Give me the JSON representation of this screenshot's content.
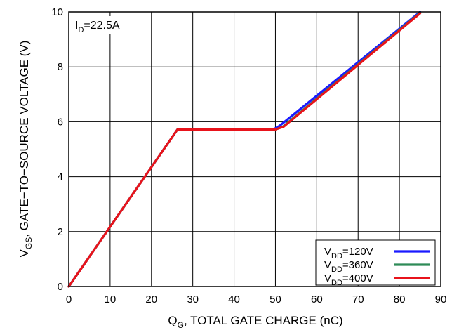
{
  "chart_data": {
    "type": "line",
    "xlabel": {
      "main": "Q",
      "sub": "G",
      "rest": ", TOTAL GATE CHARGE (nC)"
    },
    "ylabel": {
      "main": "V",
      "sub": "GS",
      "rest": ", GATE−TO−SOURCE VOLTAGE (V)"
    },
    "xlim": [
      0,
      90
    ],
    "ylim": [
      0,
      10
    ],
    "xticks": [
      "0",
      "10",
      "20",
      "30",
      "40",
      "50",
      "60",
      "70",
      "80",
      "90"
    ],
    "yticks": [
      "0",
      "2",
      "4",
      "6",
      "8",
      "10"
    ],
    "grid": true,
    "annotation": {
      "main": "I",
      "sub": "D",
      "rest": "=22.5A"
    },
    "legend_position": "bottom-right",
    "series": [
      {
        "name": {
          "main": "V",
          "sub": "DD",
          "rest": "=120V"
        },
        "color": "#1a1aff",
        "x": [
          0,
          26.3,
          49.5,
          51,
          85
        ],
        "y": [
          0,
          5.72,
          5.72,
          5.85,
          10
        ]
      },
      {
        "name": {
          "main": "V",
          "sub": "DD",
          "rest": "=360V"
        },
        "color": "#2e8b57",
        "x": [
          0,
          26.3,
          50,
          51.8,
          85
        ],
        "y": [
          0,
          5.72,
          5.72,
          5.82,
          9.97
        ]
      },
      {
        "name": {
          "main": "V",
          "sub": "DD",
          "rest": "=400V"
        },
        "color": "#e8131b",
        "x": [
          0,
          26.3,
          50,
          52,
          85
        ],
        "y": [
          0,
          5.72,
          5.72,
          5.82,
          9.95
        ]
      }
    ]
  }
}
